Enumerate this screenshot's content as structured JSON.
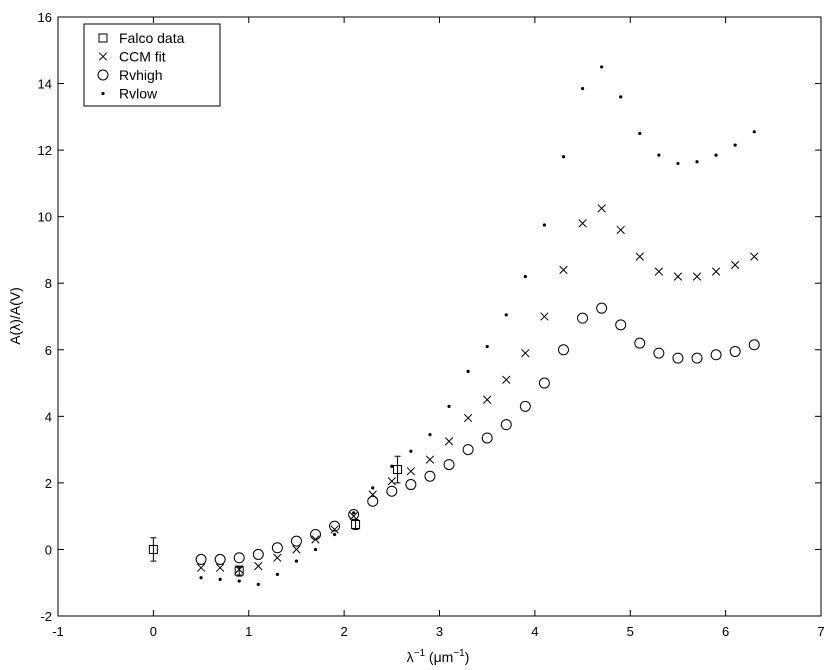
{
  "chart_data": {
    "type": "scatter",
    "title": "",
    "xlabel": "λ",
    "xlabel_sup": "−1",
    "xlabel_unit_open": " (",
    "xlabel_unit_mu": "μm",
    "xlabel_unit_sup": "−1",
    "xlabel_unit_close": ")",
    "ylabel": "A(λ)/A(V)",
    "xlim": [
      -1,
      7
    ],
    "ylim": [
      -2,
      16
    ],
    "xticks": [
      -1,
      0,
      1,
      2,
      3,
      4,
      5,
      6,
      7
    ],
    "yticks": [
      -2,
      0,
      2,
      4,
      6,
      8,
      10,
      12,
      14,
      16
    ],
    "grid": false,
    "legend_position": "top-left",
    "series": [
      {
        "name": "Falco data",
        "marker": "square",
        "x": [
          0,
          0.9,
          2.12,
          2.56
        ],
        "y": [
          0.0,
          -0.65,
          0.75,
          2.4
        ],
        "yerr": [
          0.35,
          0.15,
          0.15,
          0.4
        ]
      },
      {
        "name": "CCM fit",
        "marker": "x",
        "x": [
          0.5,
          0.7,
          0.9,
          1.1,
          1.3,
          1.5,
          1.7,
          1.9,
          2.1,
          2.3,
          2.5,
          2.7,
          2.9,
          3.1,
          3.3,
          3.5,
          3.7,
          3.9,
          4.1,
          4.3,
          4.5,
          4.7,
          4.9,
          5.1,
          5.3,
          5.5,
          5.7,
          5.9,
          6.1,
          6.3
        ],
        "y": [
          -0.55,
          -0.55,
          -0.6,
          -0.5,
          -0.25,
          0.0,
          0.3,
          0.6,
          1.0,
          1.65,
          2.05,
          2.35,
          2.7,
          3.25,
          3.95,
          4.5,
          5.1,
          5.9,
          7.0,
          8.4,
          9.8,
          10.25,
          9.6,
          8.8,
          8.35,
          8.2,
          8.2,
          8.35,
          8.55,
          8.8
        ]
      },
      {
        "name": "Rvhigh",
        "marker": "circle",
        "x": [
          0.5,
          0.7,
          0.9,
          1.1,
          1.3,
          1.5,
          1.7,
          1.9,
          2.1,
          2.3,
          2.5,
          2.7,
          2.9,
          3.1,
          3.3,
          3.5,
          3.7,
          3.9,
          4.1,
          4.3,
          4.5,
          4.7,
          4.9,
          5.1,
          5.3,
          5.5,
          5.7,
          5.9,
          6.1,
          6.3
        ],
        "y": [
          -0.3,
          -0.3,
          -0.25,
          -0.15,
          0.05,
          0.25,
          0.45,
          0.7,
          1.05,
          1.45,
          1.75,
          1.95,
          2.2,
          2.55,
          3.0,
          3.35,
          3.75,
          4.3,
          5.0,
          6.0,
          6.95,
          7.25,
          6.75,
          6.2,
          5.9,
          5.75,
          5.75,
          5.85,
          5.95,
          6.15
        ]
      },
      {
        "name": "Rvlow",
        "marker": "dot",
        "x": [
          0.5,
          0.7,
          0.9,
          1.1,
          1.3,
          1.5,
          1.7,
          1.9,
          2.1,
          2.3,
          2.5,
          2.7,
          2.9,
          3.1,
          3.3,
          3.5,
          3.7,
          3.9,
          4.1,
          4.3,
          4.5,
          4.7,
          4.9,
          5.1,
          5.3,
          5.5,
          5.7,
          5.9,
          6.1,
          6.3
        ],
        "y": [
          -0.85,
          -0.9,
          -0.95,
          -1.05,
          -0.75,
          -0.35,
          0.0,
          0.45,
          1.1,
          1.85,
          2.5,
          2.95,
          3.45,
          4.3,
          5.35,
          6.1,
          7.05,
          8.2,
          9.75,
          11.8,
          13.85,
          14.5,
          13.6,
          12.5,
          11.85,
          11.6,
          11.65,
          11.85,
          12.15,
          12.55
        ]
      }
    ]
  }
}
